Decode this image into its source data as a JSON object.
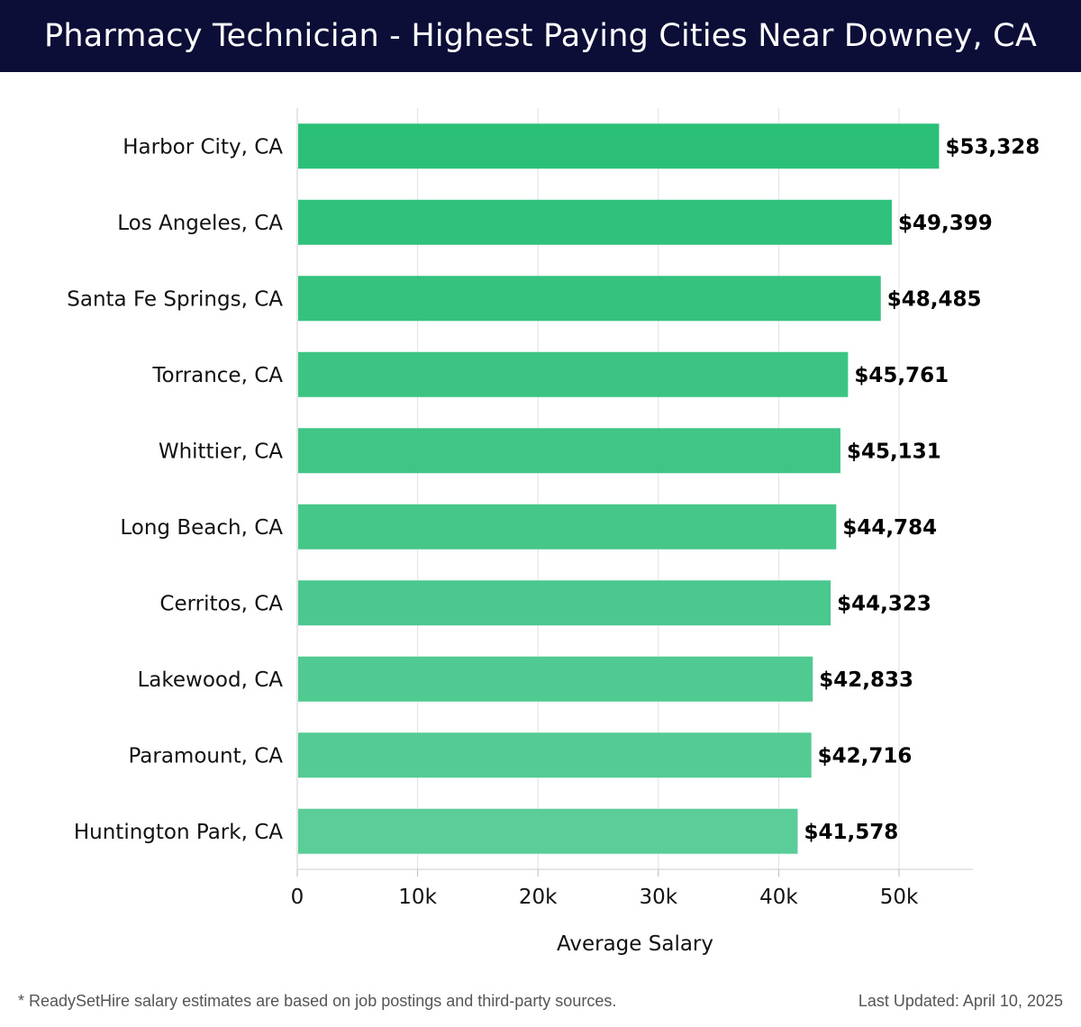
{
  "header": {
    "title": "Pharmacy Technician - Highest Paying Cities Near Downey, CA"
  },
  "chart_data": {
    "type": "bar",
    "orientation": "horizontal",
    "title": "Pharmacy Technician - Highest Paying Cities Near Downey, CA",
    "categories": [
      "Harbor City, CA",
      "Los Angeles, CA",
      "Santa Fe Springs, CA",
      "Torrance, CA",
      "Whittier, CA",
      "Long Beach, CA",
      "Cerritos, CA",
      "Lakewood, CA",
      "Paramount, CA",
      "Huntington Park, CA"
    ],
    "values": [
      53328,
      49399,
      48485,
      45761,
      45131,
      44784,
      44323,
      42833,
      42716,
      41578
    ],
    "value_labels": [
      "$53,328",
      "$49,399",
      "$48,485",
      "$45,761",
      "$45,131",
      "$44,784",
      "$44,323",
      "$42,833",
      "$42,716",
      "$41,578"
    ],
    "xlabel": "Average Salary",
    "ylabel": "",
    "xlim": [
      0,
      56000
    ],
    "xticks": [
      0,
      10000,
      20000,
      30000,
      40000,
      50000
    ],
    "xtick_labels": [
      "0",
      "10k",
      "20k",
      "30k",
      "40k",
      "50k"
    ],
    "grid": true,
    "bar_color_start": "#2bbf78",
    "bar_color_end": "#5acd98"
  },
  "footer": {
    "note": "* ReadySetHire salary estimates are based on job postings and third-party sources.",
    "updated": "Last Updated: April 10, 2025"
  }
}
